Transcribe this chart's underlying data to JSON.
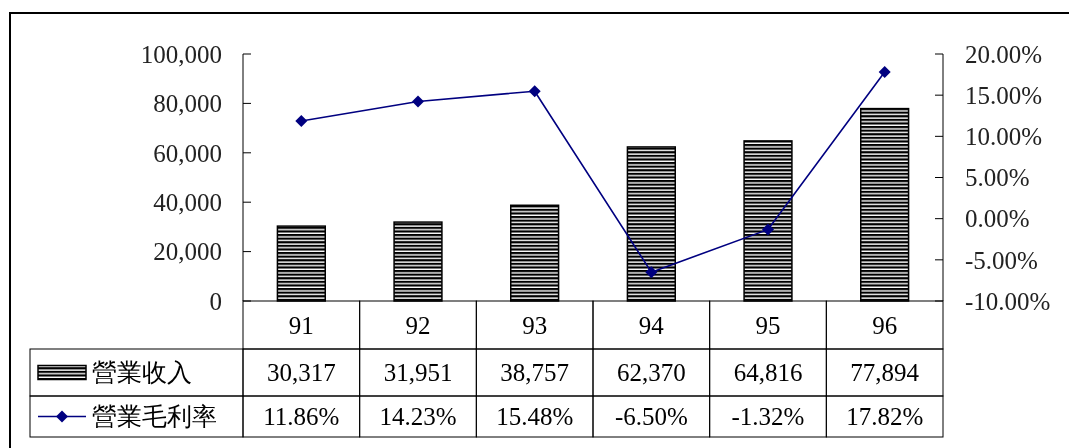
{
  "chart_data": {
    "type": "bar",
    "categories": [
      "91",
      "92",
      "93",
      "94",
      "95",
      "96"
    ],
    "series": [
      {
        "name": "營業收入",
        "color": "#000000",
        "values": [
          30317,
          31951,
          38757,
          62370,
          64816,
          77894
        ],
        "value_labels": [
          "30,317",
          "31,951",
          "38,757",
          "62,370",
          "64,816",
          "77,894"
        ]
      },
      {
        "name": "營業毛利率",
        "type": "line",
        "axis": "y2",
        "color": "#000080",
        "marker": "diamond",
        "values": [
          11.86,
          14.23,
          15.48,
          -6.5,
          -1.32,
          17.82
        ],
        "value_labels": [
          "11.86%",
          "14.23%",
          "15.48%",
          "-6.50%",
          "-1.32%",
          "17.82%"
        ]
      }
    ],
    "ylim": [
      0,
      100000
    ],
    "yticks": [
      0,
      {
        "value": 20000,
        "label": "20,000"
      },
      {
        "value": 40000,
        "label": "40,000"
      },
      {
        "value": 60000,
        "label": "60,000"
      },
      {
        "value": 80000,
        "label": "80,000"
      },
      {
        "value": 100000,
        "label": "100,000"
      }
    ],
    "y2lim": [
      -10,
      20
    ],
    "y2ticks": [
      {
        "value": -10,
        "label": "-10.00%"
      },
      {
        "value": -5,
        "label": "-5.00%"
      },
      {
        "value": 0,
        "label": "0.00%"
      },
      {
        "value": 5,
        "label": "5.00%"
      },
      {
        "value": 10,
        "label": "10.00%"
      },
      {
        "value": 15,
        "label": "15.00%"
      },
      {
        "value": 20,
        "label": "20.00%"
      }
    ],
    "legend": "bottom left"
  }
}
